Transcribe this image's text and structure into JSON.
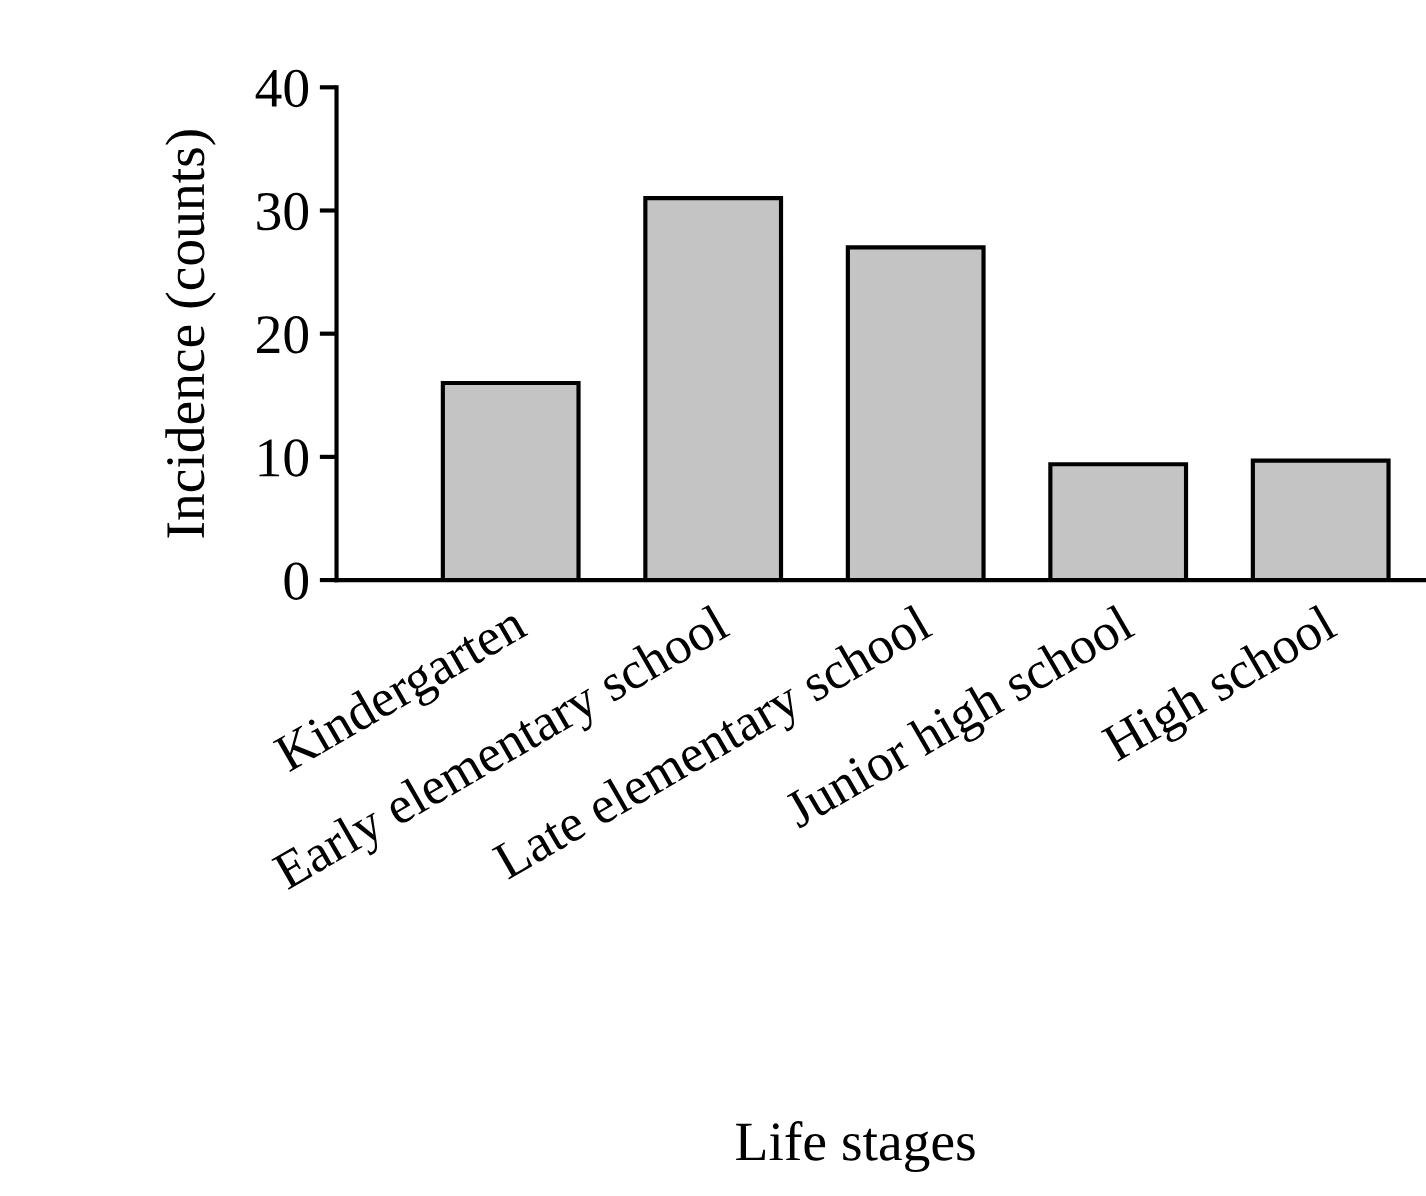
{
  "chart_data": {
    "type": "bar",
    "categories": [
      "Kindergarten",
      "Early elementary school",
      "Late elementary school",
      "Junior high school",
      "High school"
    ],
    "values": [
      16,
      31,
      27,
      9.4,
      9.7
    ],
    "color": "#c4c4c4",
    "xlabel": "Life stages",
    "ylabel": "Incidence (counts)",
    "ylim": [
      0,
      40
    ],
    "yticks": [
      0,
      10,
      20,
      30,
      40
    ],
    "grid": false,
    "legend": false
  }
}
